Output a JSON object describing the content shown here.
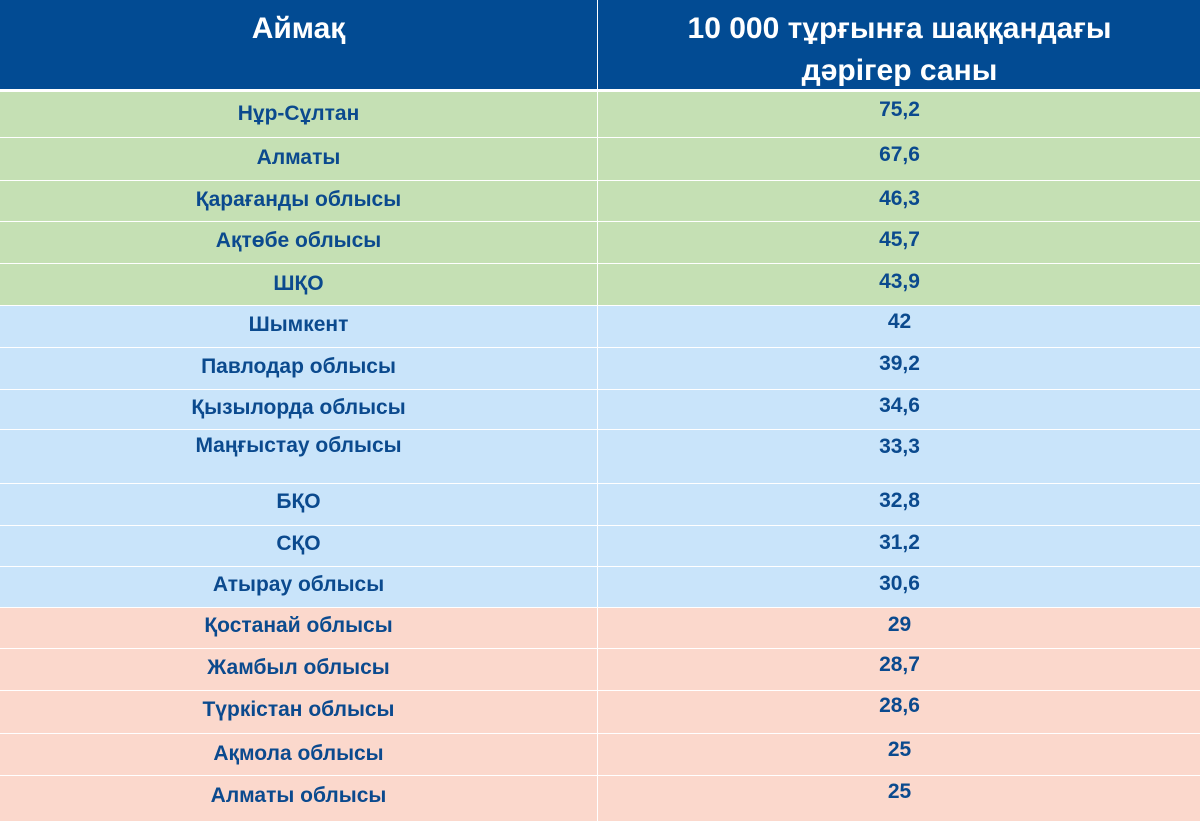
{
  "chart_data": {
    "type": "table",
    "columns": [
      "Аймақ",
      "10 000 тұрғынға шаққандағы дәрігер саны"
    ],
    "group_colors": {
      "green": "#c5e0b4",
      "blue": "#c9e4fa",
      "pink": "#fbd8cc"
    },
    "header_color": "#024b93",
    "text_color": "#0b4a8e",
    "rows": [
      {
        "region": "Нұр-Сұлтан",
        "value": "75,2",
        "group": "green"
      },
      {
        "region": "Алматы",
        "value": "67,6",
        "group": "green"
      },
      {
        "region": "Қарағанды облысы",
        "value": "46,3",
        "group": "green"
      },
      {
        "region": "Ақтөбе облысы",
        "value": "45,7",
        "group": "green"
      },
      {
        "region": "ШҚО",
        "value": "43,9",
        "group": "green"
      },
      {
        "region": "Шымкент",
        "value": "42",
        "group": "blue"
      },
      {
        "region": "Павлодар облысы",
        "value": "39,2",
        "group": "blue"
      },
      {
        "region": "Қызылорда облысы",
        "value": "34,6",
        "group": "blue"
      },
      {
        "region": "Маңғыстау облысы",
        "value": "33,3",
        "group": "blue"
      },
      {
        "region": "БҚО",
        "value": "32,8",
        "group": "blue"
      },
      {
        "region": "СҚО",
        "value": "31,2",
        "group": "blue"
      },
      {
        "region": "Атырау облысы",
        "value": "30,6",
        "group": "blue"
      },
      {
        "region": "Қостанай облысы",
        "value": "29",
        "group": "pink"
      },
      {
        "region": "Жамбыл облысы",
        "value": "28,7",
        "group": "pink"
      },
      {
        "region": "Түркістан облысы",
        "value": "28,6",
        "group": "pink"
      },
      {
        "region": "Ақмола облысы",
        "value": "25",
        "group": "pink"
      },
      {
        "region": "Алматы облысы",
        "value": "25",
        "group": "pink"
      }
    ]
  }
}
